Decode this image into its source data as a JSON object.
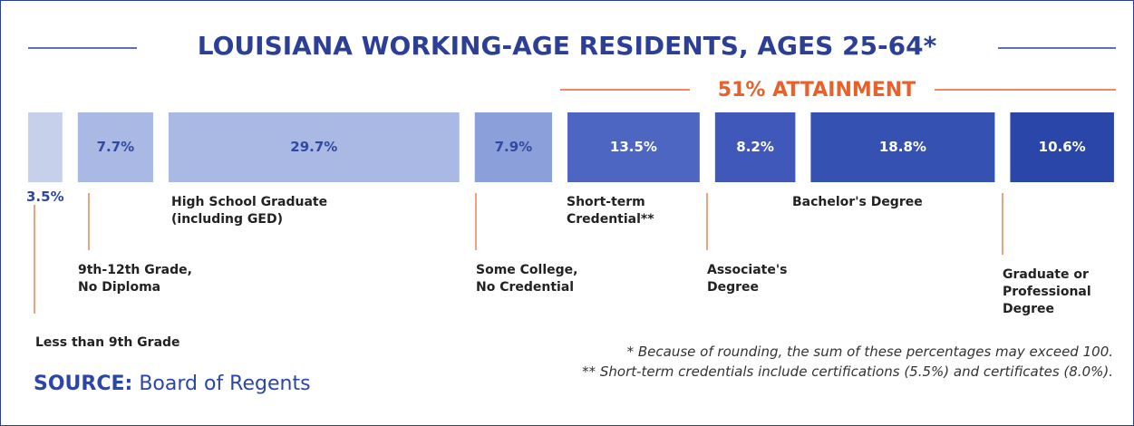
{
  "chart_data": {
    "type": "bar",
    "title": "LOUISIANA WORKING-AGE RESIDENTS, AGES 25-64*",
    "annotation": "51% ATTAINMENT",
    "categories": [
      "Less than 9th Grade",
      "9th-12th Grade,\nNo Diploma",
      "High School Graduate\n(including GED)",
      "Some College,\nNo Credential",
      "Short-term\nCredential**",
      "Associate's\nDegree",
      "Bachelor's Degree",
      "Graduate or\nProfessional\nDegree"
    ],
    "values": [
      3.5,
      7.7,
      29.7,
      7.9,
      13.5,
      8.2,
      18.8,
      10.6
    ],
    "value_labels": [
      "3.5%",
      "7.7%",
      "29.7%",
      "7.9%",
      "13.5%",
      "8.2%",
      "18.8%",
      "10.6%"
    ],
    "colors": [
      "#c6d0ea",
      "#aab9e4",
      "#aab9e4",
      "#8b9fdb",
      "#4d66c2",
      "#3f58ba",
      "#3551b1",
      "#2b46a9"
    ],
    "notes": [
      "*  Because of rounding, the sum of these percentages may exceed 100.",
      "** Short-term credentials include certifications (5.5%) and certificates (8.0%)."
    ],
    "source_label": "SOURCE:",
    "source": "Board of Regents"
  }
}
